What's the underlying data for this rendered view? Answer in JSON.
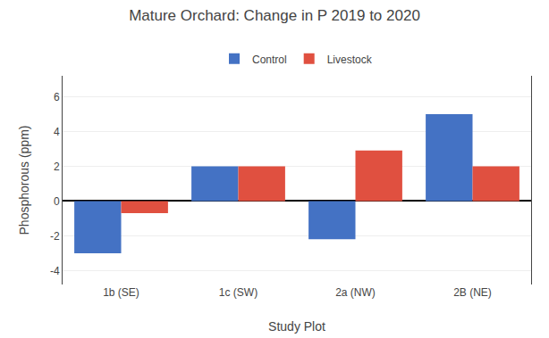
{
  "chart_data": {
    "type": "bar",
    "title": "Mature Orchard: Change in P 2019 to 2020",
    "xlabel": "Study Plot",
    "ylabel": "Phosphorous (ppm)",
    "categories": [
      "1b (SE)",
      "1c (SW)",
      "2a (NW)",
      "2B (NE)"
    ],
    "series": [
      {
        "name": "Control",
        "color": "#4472C4",
        "values": [
          -3.0,
          2.0,
          -2.2,
          5.0
        ]
      },
      {
        "name": "Livestock",
        "color": "#E05040",
        "values": [
          -0.7,
          2.0,
          2.9,
          2.0
        ]
      }
    ],
    "ylim": [
      -4.8,
      7.2
    ],
    "yticks": [
      -4,
      -2,
      0,
      2,
      4,
      6
    ],
    "grid": true,
    "legend": "upper center"
  }
}
